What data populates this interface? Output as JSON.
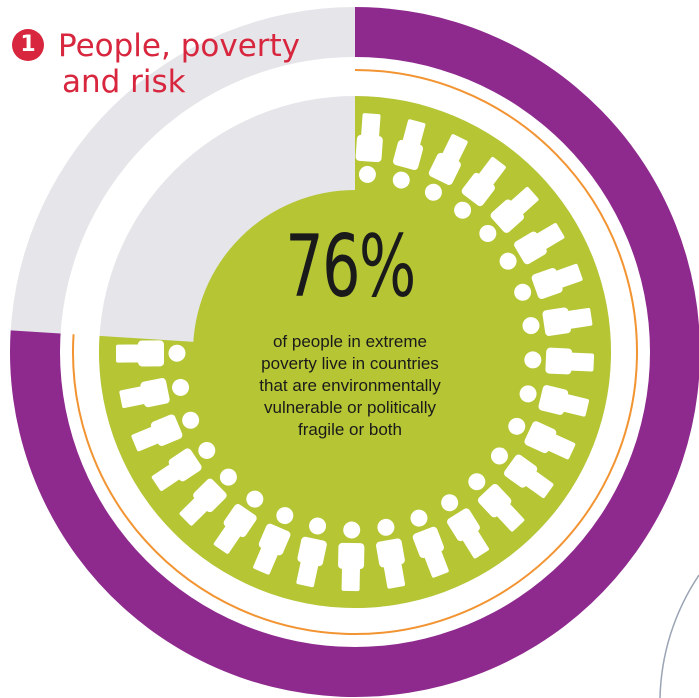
{
  "title": {
    "number": "1",
    "line1": "People, poverty",
    "line2": "and risk"
  },
  "stat": {
    "value": "76%",
    "fraction": 0.76,
    "caption_lines": [
      "of people in extreme",
      "poverty live in countries",
      "that are environmentally",
      "vulnerable or politically",
      "fragile or both"
    ]
  },
  "colors": {
    "accent_red": "#d7263d",
    "purple": "#8e2a8e",
    "light_gray": "#e6e6ea",
    "lime_green": "#b5c534",
    "orange_ring": "#f29432",
    "text_dark": "#1a1a1a"
  },
  "icons": {
    "person": "person-icon",
    "count": 25
  }
}
